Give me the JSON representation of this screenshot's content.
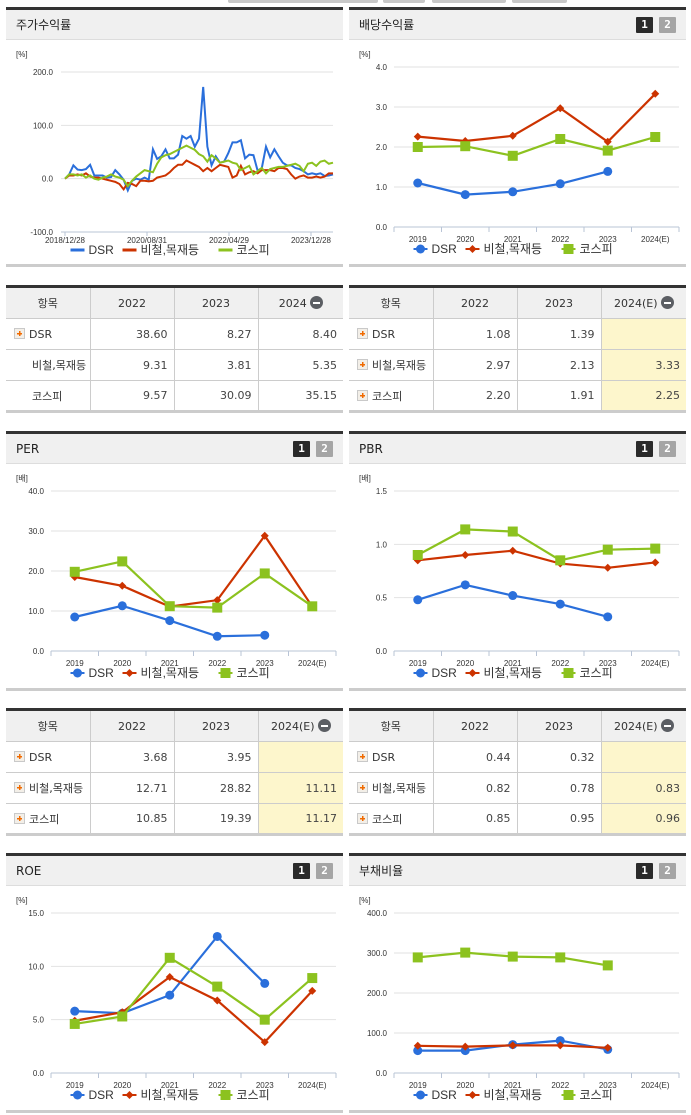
{
  "series_names": [
    "DSR",
    "비철,목재등",
    "코스피"
  ],
  "colors": {
    "DSR": "#2a6fdb",
    "metal": "#cc3300",
    "kospi": "#8cc21f"
  },
  "toggle": {
    "one": "1",
    "two": "2"
  },
  "panels": {
    "stock": {
      "title": "주가수익률",
      "unit": "[%]"
    },
    "dividend": {
      "title": "배당수익률",
      "unit": "[%]"
    },
    "per": {
      "title": "PER",
      "unit": "[배]"
    },
    "pbr": {
      "title": "PBR",
      "unit": "[배]"
    },
    "roe": {
      "title": "ROE",
      "unit": "[%]"
    },
    "debt": {
      "title": "부채비율",
      "unit": "[%]"
    }
  },
  "tables": {
    "stock": {
      "headers": [
        "항목",
        "2022",
        "2023",
        "2024"
      ],
      "rows": [
        {
          "name": "DSR",
          "v": [
            "38.60",
            "8.27",
            "8.40"
          ]
        },
        {
          "name": "비철,목재등",
          "v": [
            "9.31",
            "3.81",
            "5.35"
          ]
        },
        {
          "name": "코스피",
          "v": [
            "9.57",
            "30.09",
            "35.15"
          ]
        }
      ]
    },
    "dividend": {
      "headers": [
        "항목",
        "2022",
        "2023",
        "2024(E)"
      ],
      "rows": [
        {
          "name": "DSR",
          "v": [
            "1.08",
            "1.39",
            ""
          ]
        },
        {
          "name": "비철,목재등",
          "v": [
            "2.97",
            "2.13",
            "3.33"
          ]
        },
        {
          "name": "코스피",
          "v": [
            "2.20",
            "1.91",
            "2.25"
          ]
        }
      ]
    },
    "per": {
      "headers": [
        "항목",
        "2022",
        "2023",
        "2024(E)"
      ],
      "rows": [
        {
          "name": "DSR",
          "v": [
            "3.68",
            "3.95",
            ""
          ]
        },
        {
          "name": "비철,목재등",
          "v": [
            "12.71",
            "28.82",
            "11.11"
          ]
        },
        {
          "name": "코스피",
          "v": [
            "10.85",
            "19.39",
            "11.17"
          ]
        }
      ]
    },
    "pbr": {
      "headers": [
        "항목",
        "2022",
        "2023",
        "2024(E)"
      ],
      "rows": [
        {
          "name": "DSR",
          "v": [
            "0.44",
            "0.32",
            ""
          ]
        },
        {
          "name": "비철,목재등",
          "v": [
            "0.82",
            "0.78",
            "0.83"
          ]
        },
        {
          "name": "코스피",
          "v": [
            "0.85",
            "0.95",
            "0.96"
          ]
        }
      ]
    }
  },
  "chart_data": [
    {
      "id": "stock",
      "type": "line",
      "title": "주가수익률",
      "ylabel": "[%]",
      "ylim": [
        -100,
        200
      ],
      "yticks": [
        "200.0",
        "100.0",
        "0.0",
        "-100.0"
      ],
      "xticks": [
        "2018/12/28",
        "2020/08/31",
        "2022/04/29",
        "2023/12/28"
      ],
      "series": [
        {
          "name": "DSR",
          "values": [
            0,
            8,
            25,
            17,
            16,
            18,
            26,
            6,
            6,
            6,
            2,
            3,
            16,
            8,
            -2,
            -22,
            -4,
            0,
            -2,
            2,
            -2,
            55,
            37,
            42,
            55,
            38,
            38,
            45,
            80,
            75,
            80,
            60,
            75,
            172,
            60,
            25,
            42,
            30,
            32,
            48,
            68,
            68,
            72,
            38,
            45,
            44,
            15,
            20,
            60,
            40,
            55,
            42,
            30,
            25,
            25,
            20,
            18,
            14,
            8,
            10,
            8,
            10,
            5,
            6,
            8
          ]
        },
        {
          "name": "비철,목재등",
          "values": [
            0,
            6,
            6,
            8,
            6,
            10,
            4,
            2,
            2,
            0,
            -2,
            -4,
            -6,
            -10,
            -20,
            -8,
            -10,
            -14,
            -4,
            -4,
            -5,
            -4,
            2,
            4,
            6,
            12,
            20,
            26,
            26,
            34,
            30,
            26,
            22,
            14,
            20,
            14,
            20,
            26,
            24,
            22,
            2,
            6,
            24,
            8,
            12,
            14,
            10,
            16,
            16,
            16,
            14,
            20,
            20,
            18,
            8,
            0,
            4,
            6,
            2,
            2,
            4,
            2,
            4,
            10,
            10
          ]
        },
        {
          "name": "코스피",
          "values": [
            0,
            8,
            8,
            6,
            8,
            2,
            6,
            0,
            -2,
            2,
            4,
            8,
            4,
            2,
            -2,
            -14,
            -4,
            4,
            10,
            16,
            14,
            12,
            28,
            40,
            44,
            46,
            50,
            54,
            58,
            62,
            58,
            54,
            46,
            42,
            32,
            44,
            38,
            30,
            32,
            34,
            30,
            28,
            16,
            20,
            24,
            8,
            14,
            20,
            10,
            18,
            20,
            22,
            22,
            24,
            26,
            28,
            24,
            14,
            28,
            30,
            24,
            32,
            34,
            28,
            30
          ]
        }
      ]
    },
    {
      "id": "dividend",
      "type": "line",
      "title": "배당수익률",
      "ylabel": "[%]",
      "ylim": [
        0,
        4
      ],
      "yticks": [
        "4.0",
        "3.0",
        "2.0",
        "1.0",
        "0.0"
      ],
      "categories": [
        "2019",
        "2020",
        "2021",
        "2022",
        "2023",
        "2024(E)"
      ],
      "series": [
        {
          "name": "DSR",
          "values": [
            1.1,
            0.81,
            0.88,
            1.08,
            1.39,
            null
          ]
        },
        {
          "name": "비철,목재등",
          "values": [
            2.26,
            2.15,
            2.28,
            2.97,
            2.13,
            3.33
          ]
        },
        {
          "name": "코스피",
          "values": [
            2.0,
            2.02,
            1.78,
            2.2,
            1.91,
            2.25
          ]
        }
      ]
    },
    {
      "id": "per",
      "type": "line",
      "title": "PER",
      "ylabel": "[배]",
      "ylim": [
        0,
        40
      ],
      "yticks": [
        "40.0",
        "30.0",
        "20.0",
        "10.0",
        "0.0"
      ],
      "categories": [
        "2019",
        "2020",
        "2021",
        "2022",
        "2023",
        "2024(E)"
      ],
      "series": [
        {
          "name": "DSR",
          "values": [
            8.5,
            11.3,
            7.6,
            3.68,
            3.95,
            null
          ]
        },
        {
          "name": "비철,목재등",
          "values": [
            18.5,
            16.3,
            11.1,
            12.71,
            28.82,
            11.11
          ]
        },
        {
          "name": "코스피",
          "values": [
            19.8,
            22.4,
            11.2,
            10.85,
            19.39,
            11.17
          ]
        }
      ]
    },
    {
      "id": "pbr",
      "type": "line",
      "title": "PBR",
      "ylabel": "[배]",
      "ylim": [
        0,
        1.5
      ],
      "yticks": [
        "1.5",
        "1.0",
        "0.5",
        "0.0"
      ],
      "categories": [
        "2019",
        "2020",
        "2021",
        "2022",
        "2023",
        "2024(E)"
      ],
      "series": [
        {
          "name": "DSR",
          "values": [
            0.48,
            0.62,
            0.52,
            0.44,
            0.32,
            null
          ]
        },
        {
          "name": "비철,목재등",
          "values": [
            0.85,
            0.9,
            0.94,
            0.82,
            0.78,
            0.83
          ]
        },
        {
          "name": "코스피",
          "values": [
            0.9,
            1.14,
            1.12,
            0.85,
            0.95,
            0.96
          ]
        }
      ]
    },
    {
      "id": "roe",
      "type": "line",
      "title": "ROE",
      "ylabel": "[%]",
      "ylim": [
        0,
        15
      ],
      "yticks": [
        "15.0",
        "10.0",
        "5.0",
        "0.0"
      ],
      "categories": [
        "2019",
        "2020",
        "2021",
        "2022",
        "2023",
        "2024(E)"
      ],
      "series": [
        {
          "name": "DSR",
          "values": [
            5.8,
            5.6,
            7.3,
            12.8,
            8.4,
            null
          ]
        },
        {
          "name": "비철,목재등",
          "values": [
            4.9,
            5.7,
            9.0,
            6.8,
            2.9,
            7.7
          ]
        },
        {
          "name": "코스피",
          "values": [
            4.6,
            5.3,
            10.8,
            8.1,
            5.0,
            8.9
          ]
        }
      ]
    },
    {
      "id": "debt",
      "type": "line",
      "title": "부채비율",
      "ylabel": "[%]",
      "ylim": [
        0,
        400
      ],
      "yticks": [
        "400.0",
        "300.0",
        "200.0",
        "100.0",
        "0.0"
      ],
      "categories": [
        "2019",
        "2020",
        "2021",
        "2022",
        "2023",
        "2024(E)"
      ],
      "series": [
        {
          "name": "DSR",
          "values": [
            56,
            56,
            71,
            81,
            59,
            null
          ]
        },
        {
          "name": "비철,목재등",
          "values": [
            68,
            66,
            69,
            69,
            63,
            null
          ]
        },
        {
          "name": "코스피",
          "values": [
            289,
            301,
            291,
            289,
            269,
            null
          ]
        }
      ]
    }
  ]
}
